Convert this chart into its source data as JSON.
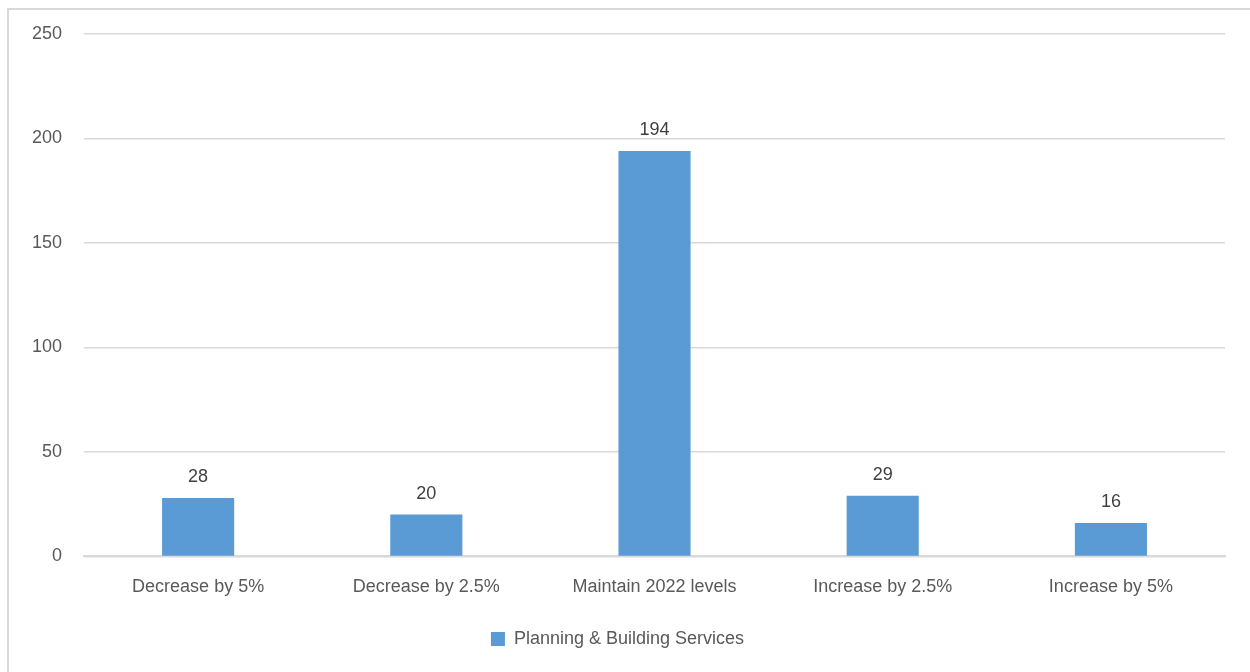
{
  "chart_data": {
    "type": "bar",
    "categories": [
      "Decrease by 5%",
      "Decrease by 2.5%",
      "Maintain 2022 levels",
      "Increase by 2.5%",
      "Increase by 5%"
    ],
    "series": [
      {
        "name": "Planning & Building Services",
        "color": "#5b9bd5",
        "values": [
          28,
          20,
          194,
          29,
          16
        ]
      }
    ],
    "ylim": [
      0,
      250
    ],
    "yticks": [
      0,
      50,
      100,
      150,
      200,
      250
    ],
    "grid": "y",
    "legend": "bottom",
    "data_labels": true
  }
}
